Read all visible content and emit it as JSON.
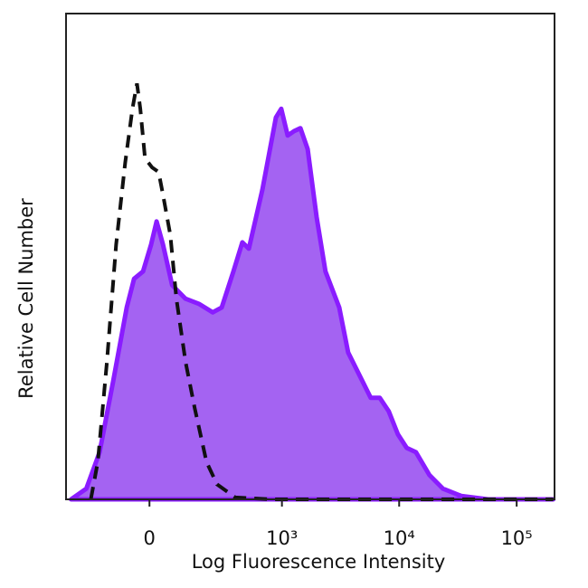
{
  "chart_data": {
    "type": "histogram-overlay",
    "xlabel": "Log Fluorescence Intensity",
    "ylabel": "Relative Cell Number",
    "xscale": "asinh",
    "xlim": [
      -370,
      210000
    ],
    "ylim": [
      0,
      100
    ],
    "xticks": [
      0,
      {
        "value": 1000,
        "label": "10³"
      },
      {
        "value": 10000,
        "label": "10⁴"
      },
      {
        "value": 100000,
        "label": "10⁵"
      }
    ],
    "series": [
      {
        "color": "#8a1cff",
        "fill": "#a463f2",
        "style": "solid",
        "x": [
          -333,
          -237,
          -171,
          -115,
          -69,
          -46,
          -19,
          5,
          21,
          40,
          69,
          115,
          171,
          237,
          291,
          374,
          451,
          515,
          677,
          887,
          987,
          1120,
          1270,
          1440,
          1660,
          1980,
          2360,
          3090,
          3680,
          4800,
          5730,
          6840,
          8160,
          9750,
          11600,
          13900,
          18100,
          23600,
          33700,
          57100,
          205000
        ],
        "values": [
          0,
          2.2,
          9.7,
          24.6,
          39.5,
          45.4,
          46.9,
          52.5,
          57.2,
          52.5,
          44.1,
          41.3,
          40.2,
          38.5,
          39.5,
          46.9,
          52.9,
          51.6,
          63.7,
          78.6,
          80.4,
          74.9,
          75.8,
          76.4,
          72.1,
          58.1,
          46.9,
          39.5,
          30.2,
          24.6,
          20.9,
          20.9,
          18.1,
          13.4,
          10.6,
          9.7,
          5.0,
          2.2,
          0.7,
          0,
          0
        ]
      },
      {
        "color": "#111111",
        "style": "dashed",
        "x": [
          -213,
          -179,
          -140,
          -105,
          -74,
          -51,
          -37,
          -27,
          -13,
          8,
          27,
          40,
          63,
          83,
          115,
          151,
          205,
          262,
          389,
          812,
          205000
        ],
        "values": [
          0,
          7.8,
          28.3,
          52.5,
          69.3,
          80.4,
          85.6,
          80.4,
          70.2,
          68.3,
          67.4,
          62.8,
          54.4,
          41.3,
          28.3,
          18.8,
          7.7,
          3.1,
          0.4,
          0,
          0
        ]
      }
    ]
  }
}
